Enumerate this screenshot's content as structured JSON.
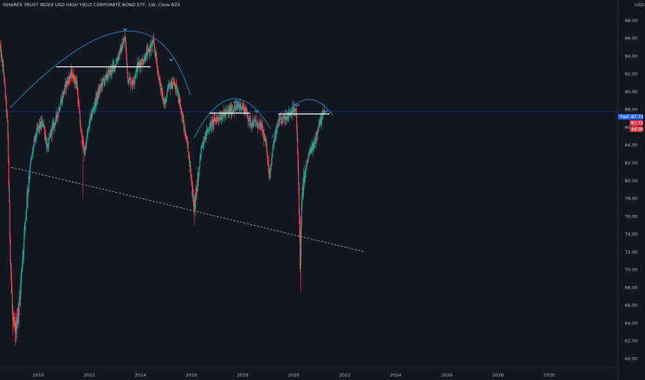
{
  "header": {
    "title": "ISHARES TRUST IBOXX USD HIGH YIELD CORPORATE BOND ETF, 1W, Cboe BZX",
    "currency": "USD"
  },
  "price_tags": [
    {
      "label": "Post",
      "value": "87.74",
      "color": "#2962ff"
    },
    {
      "value": "87.72",
      "color": "#f23645"
    },
    {
      "value": "4d 0h",
      "color": "#f23645"
    }
  ],
  "colors": {
    "background": "#131722",
    "up_candle": "#26a69a",
    "down_candle": "#ef5350",
    "arc": "#2a7ab0",
    "resistance": "#ffffff",
    "trendline": "#cfd2d9",
    "last_price_line": "#2962ff"
  },
  "chart_data": {
    "type": "candlestick",
    "title": "ISHARES TRUST IBOXX USD HIGH YIELD CORPORATE BOND ETF, 1W, Cboe BZX",
    "xlabel": "",
    "ylabel": "",
    "xlim": [
      2008.5,
      2032.7
    ],
    "ylim": [
      59,
      100
    ],
    "x_ticks": [
      2010,
      2012,
      2014,
      2016,
      2018,
      2020,
      2022,
      2024,
      2026,
      2028,
      2030
    ],
    "y_ticks": [
      60,
      62,
      64,
      66,
      68,
      70,
      72,
      74,
      76,
      78,
      80,
      82,
      84,
      86,
      88,
      90,
      92,
      94,
      96,
      98
    ],
    "grid": false,
    "price_path": [
      [
        2008.5,
        95.0
      ],
      [
        2008.65,
        92.0
      ],
      [
        2008.8,
        86.0
      ],
      [
        2008.9,
        72.0
      ],
      [
        2009.0,
        64.0
      ],
      [
        2009.1,
        63.0
      ],
      [
        2009.25,
        66.0
      ],
      [
        2009.4,
        72.0
      ],
      [
        2009.55,
        78.0
      ],
      [
        2009.7,
        82.0
      ],
      [
        2009.85,
        84.5
      ],
      [
        2010.0,
        86.0
      ],
      [
        2010.2,
        86.5
      ],
      [
        2010.35,
        83.5
      ],
      [
        2010.5,
        85.5
      ],
      [
        2010.7,
        87.0
      ],
      [
        2010.9,
        89.0
      ],
      [
        2011.1,
        91.0
      ],
      [
        2011.3,
        92.0
      ],
      [
        2011.5,
        91.0
      ],
      [
        2011.65,
        86.0
      ],
      [
        2011.8,
        83.0
      ],
      [
        2012.0,
        86.5
      ],
      [
        2012.25,
        89.0
      ],
      [
        2012.5,
        91.0
      ],
      [
        2012.75,
        92.0
      ],
      [
        2013.0,
        93.0
      ],
      [
        2013.2,
        94.5
      ],
      [
        2013.4,
        96.0
      ],
      [
        2013.5,
        91.5
      ],
      [
        2013.7,
        91.0
      ],
      [
        2013.9,
        93.0
      ],
      [
        2014.1,
        93.5
      ],
      [
        2014.3,
        94.5
      ],
      [
        2014.5,
        95.5
      ],
      [
        2014.6,
        94.0
      ],
      [
        2014.75,
        91.0
      ],
      [
        2014.95,
        88.5
      ],
      [
        2015.1,
        90.5
      ],
      [
        2015.3,
        91.0
      ],
      [
        2015.5,
        89.5
      ],
      [
        2015.7,
        86.0
      ],
      [
        2015.85,
        84.0
      ],
      [
        2016.0,
        80.0
      ],
      [
        2016.1,
        77.0
      ],
      [
        2016.25,
        80.0
      ],
      [
        2016.4,
        84.0
      ],
      [
        2016.6,
        85.5
      ],
      [
        2016.8,
        86.5
      ],
      [
        2017.0,
        87.0
      ],
      [
        2017.3,
        87.5
      ],
      [
        2017.6,
        88.0
      ],
      [
        2017.9,
        88.5
      ],
      [
        2018.1,
        88.0
      ],
      [
        2018.3,
        86.5
      ],
      [
        2018.5,
        86.5
      ],
      [
        2018.75,
        86.0
      ],
      [
        2018.95,
        83.5
      ],
      [
        2019.05,
        80.5
      ],
      [
        2019.2,
        84.0
      ],
      [
        2019.4,
        86.5
      ],
      [
        2019.6,
        87.0
      ],
      [
        2019.8,
        87.5
      ],
      [
        2020.0,
        88.0
      ],
      [
        2020.1,
        87.5
      ],
      [
        2020.2,
        79.0
      ],
      [
        2020.25,
        70.0
      ],
      [
        2020.32,
        78.0
      ],
      [
        2020.45,
        81.0
      ],
      [
        2020.6,
        83.0
      ],
      [
        2020.8,
        84.0
      ],
      [
        2020.95,
        86.0
      ],
      [
        2021.1,
        87.0
      ],
      [
        2021.2,
        87.7
      ]
    ],
    "last_price": 87.74,
    "annotations": {
      "arcs": [
        {
          "x": [
            2008.9,
            2013.4,
            2015.95
          ],
          "y": [
            88.2,
            96.8,
            89.6
          ]
        },
        {
          "x": [
            2016.1,
            2017.6,
            2019.1
          ],
          "y": [
            84.8,
            89.2,
            85.8
          ]
        },
        {
          "x": [
            2019.15,
            2020.35,
            2021.55
          ],
          "y": [
            84.8,
            89.0,
            87.3
          ]
        }
      ],
      "resistance_lines": [
        {
          "x": [
            2010.7,
            2014.4
          ],
          "y": 92.8
        },
        {
          "x": [
            2016.7,
            2018.3
          ],
          "y": 87.6
        },
        {
          "x": [
            2019.4,
            2021.4
          ],
          "y": 87.5
        }
      ],
      "trendline": {
        "x": [
          2008.95,
          2022.8
        ],
        "y": [
          81.5,
          72.0
        ]
      },
      "markers": [
        {
          "x": 2013.4,
          "y": 97.0
        },
        {
          "x": 2015.2,
          "y": 93.6
        },
        {
          "x": 2017.7,
          "y": 88.8
        },
        {
          "x": 2018.55,
          "y": 87.8
        },
        {
          "x": 2020.15,
          "y": 88.5
        },
        {
          "x": 2021.25,
          "y": 87.8
        }
      ]
    }
  }
}
